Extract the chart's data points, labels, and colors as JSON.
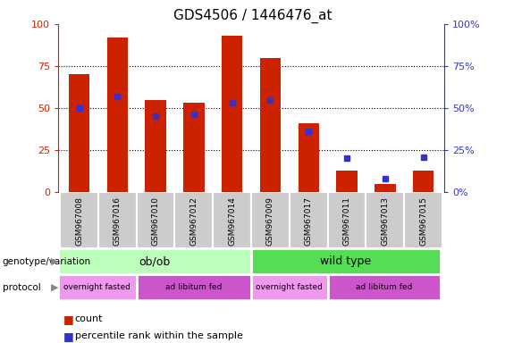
{
  "title": "GDS4506 / 1446476_at",
  "samples": [
    "GSM967008",
    "GSM967016",
    "GSM967010",
    "GSM967012",
    "GSM967014",
    "GSM967009",
    "GSM967017",
    "GSM967011",
    "GSM967013",
    "GSM967015"
  ],
  "count_values": [
    70,
    92,
    55,
    53,
    93,
    80,
    41,
    13,
    5,
    13
  ],
  "percentile_values": [
    50,
    57,
    45,
    46,
    53,
    55,
    36,
    20,
    8,
    21
  ],
  "bar_color": "#cc2200",
  "dot_color": "#3333cc",
  "ylim": [
    0,
    100
  ],
  "yticks": [
    0,
    25,
    50,
    75,
    100
  ],
  "left_axis_color": "#cc2200",
  "right_axis_color": "#3333cc",
  "tick_label_bg": "#cccccc",
  "tick_label_edge": "#aaaaaa",
  "genotype_ob_label": "ob/ob",
  "genotype_wt_label": "wild type",
  "genotype_ob_color": "#bbffbb",
  "genotype_wt_color": "#55dd55",
  "protocol_fasted_label": "overnight fasted",
  "protocol_fed_label": "ad libitum fed",
  "protocol_fasted_color": "#ee99ee",
  "protocol_fed_color": "#cc55cc",
  "legend_count": "count",
  "legend_pct": "percentile rank within the sample",
  "title_fontsize": 11,
  "bar_width": 0.55,
  "dot_size": 5
}
